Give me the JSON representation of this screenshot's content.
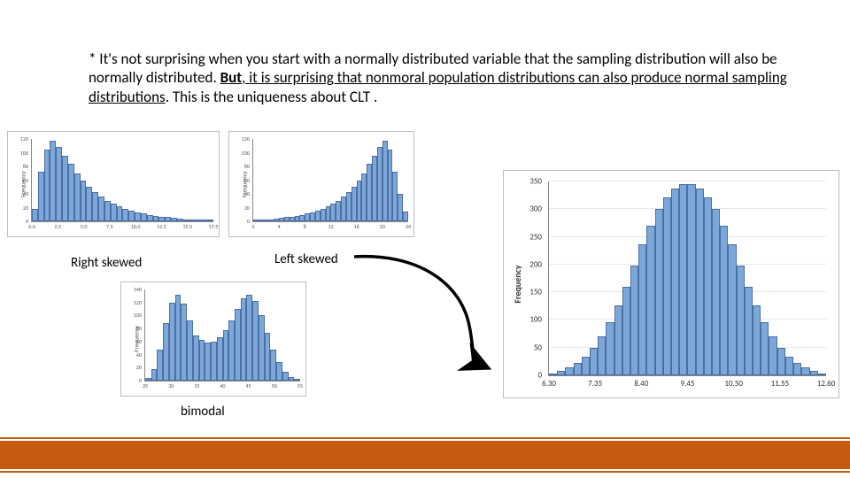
{
  "text": {
    "pre": "* It's not surprising when you start with a normally distributed variable that the sampling distribution will also be normally distributed. ",
    "bold": "But",
    "mid": ", ",
    "ul": "it is surprising that nonmoral population distributions can also produce normal sampling distributions",
    "post": ". This is the uniqueness about CLT ."
  },
  "captions": {
    "right_skewed": "Right skewed",
    "left_skewed": "Left skewed",
    "bimodal": "bimodal"
  },
  "colors": {
    "bar_fill": "#7da7d9",
    "bar_stroke": "#4a6fa5",
    "accent": "#c55a11",
    "grid": "#e8e8e8",
    "axis": "#888888"
  },
  "chart_right_skewed": {
    "type": "histogram",
    "ylabel": "Frequency",
    "y_max": 120,
    "y_ticks": [
      0,
      20,
      40,
      60,
      80,
      100,
      120
    ],
    "x_ticks": [
      "0.0",
      "2.5",
      "5.0",
      "7.5",
      "10.0",
      "12.5",
      "15.0",
      "17.5"
    ],
    "values": [
      18,
      72,
      105,
      118,
      108,
      96,
      84,
      70,
      60,
      50,
      42,
      36,
      30,
      26,
      22,
      18,
      15,
      13,
      11,
      9,
      8,
      7,
      6,
      5,
      4,
      3,
      3,
      2,
      2,
      2
    ]
  },
  "chart_left_skewed": {
    "type": "histogram",
    "ylabel": "Frequency",
    "y_max": 120,
    "y_ticks": [
      0,
      20,
      40,
      60,
      80,
      100,
      120
    ],
    "x_ticks": [
      "0",
      "4",
      "8",
      "12",
      "16",
      "20",
      "24"
    ],
    "values": [
      2,
      2,
      3,
      3,
      4,
      5,
      6,
      7,
      8,
      9,
      11,
      13,
      15,
      18,
      22,
      26,
      30,
      36,
      42,
      50,
      60,
      70,
      84,
      96,
      108,
      118,
      105,
      72,
      40,
      14
    ]
  },
  "chart_bimodal": {
    "type": "histogram",
    "ylabel": "Frequency",
    "y_max": 140,
    "y_ticks": [
      0,
      20,
      40,
      60,
      80,
      100,
      120,
      140
    ],
    "x_ticks": [
      "25",
      "30",
      "35",
      "40",
      "45",
      "50",
      "55"
    ],
    "values": [
      4,
      18,
      48,
      88,
      120,
      132,
      118,
      92,
      70,
      62,
      58,
      60,
      66,
      78,
      92,
      110,
      126,
      132,
      122,
      100,
      74,
      48,
      28,
      14,
      6,
      3
    ]
  },
  "chart_normal": {
    "type": "histogram",
    "ylabel": "Frequency",
    "y_max": 350,
    "y_ticks": [
      0,
      50,
      100,
      150,
      200,
      250,
      300,
      350
    ],
    "x_ticks": [
      "6.30",
      "7.35",
      "8.40",
      "9.45",
      "10.50",
      "11.55",
      "12.60"
    ],
    "values": [
      4,
      8,
      14,
      22,
      34,
      50,
      70,
      96,
      126,
      160,
      198,
      236,
      270,
      300,
      322,
      338,
      346,
      346,
      338,
      322,
      300,
      270,
      236,
      198,
      160,
      126,
      96,
      70,
      50,
      34,
      22,
      14,
      8,
      4
    ]
  }
}
